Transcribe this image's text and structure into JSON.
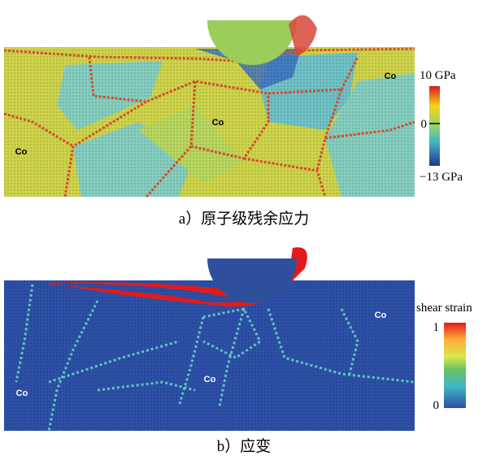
{
  "panels": [
    {
      "labels": [
        "Co",
        "Co",
        "Co"
      ],
      "colorbar": {
        "max_label": "10 GPa",
        "mid_label": "0",
        "min_label": "−13 GPa"
      },
      "caption": "a）原子级残余应力"
    },
    {
      "labels": [
        "Co",
        "Co",
        "Co"
      ],
      "colorbar": {
        "title": "shear strain",
        "max_label": "1",
        "min_label": "0"
      },
      "caption": "b）应变"
    }
  ]
}
